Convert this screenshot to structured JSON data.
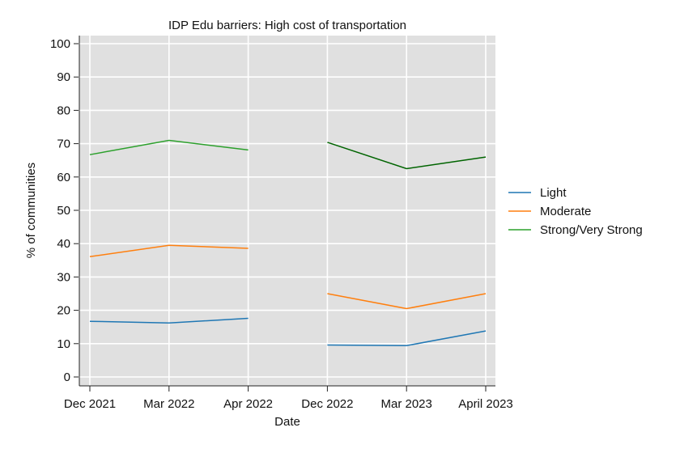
{
  "chart_data": {
    "type": "line",
    "title": "IDP Edu barriers: High cost of transportation",
    "xlabel": "Date",
    "ylabel": "% of communities",
    "categories": [
      "Dec 2021",
      "Mar 2022",
      "Apr 2022",
      "Dec 2022",
      "Mar 2023",
      "April 2023"
    ],
    "ylim": [
      0,
      100
    ],
    "yticks": [
      0,
      10,
      20,
      30,
      40,
      50,
      60,
      70,
      80,
      90,
      100
    ],
    "grid": true,
    "legend_position": "right",
    "background_color": "#e0e0e0",
    "series": [
      {
        "name": "Light",
        "color": "#1f77b4",
        "segments": [
          {
            "categories": [
              "Dec 2021",
              "Mar 2022",
              "Apr 2022"
            ],
            "values": [
              16.7,
              16.2,
              17.6
            ]
          },
          {
            "categories": [
              "Dec 2022",
              "Mar 2023",
              "April 2023"
            ],
            "values": [
              9.6,
              9.4,
              13.8
            ]
          }
        ]
      },
      {
        "name": "Moderate",
        "color": "#ff7f0e",
        "segments": [
          {
            "categories": [
              "Dec 2021",
              "Mar 2022",
              "Apr 2022"
            ],
            "values": [
              36.1,
              39.5,
              38.6
            ]
          },
          {
            "categories": [
              "Dec 2022",
              "Mar 2023",
              "April 2023"
            ],
            "values": [
              25.0,
              20.5,
              25.0
            ]
          }
        ]
      },
      {
        "name": "Strong/Very Strong",
        "color": "#2ca02c",
        "segments": [
          {
            "categories": [
              "Dec 2021",
              "Mar 2022",
              "Apr 2022"
            ],
            "values": [
              66.7,
              71.0,
              68.1
            ],
            "color": "#2ca02c"
          },
          {
            "categories": [
              "Dec 2022",
              "Mar 2023",
              "April 2023"
            ],
            "values": [
              70.4,
              62.5,
              66.0
            ],
            "color": "#006400"
          }
        ]
      }
    ]
  }
}
